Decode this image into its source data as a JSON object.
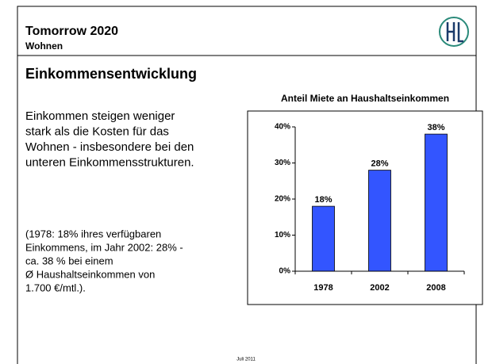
{
  "header": {
    "title": "Tomorrow 2020",
    "subtitle": "Wohnen"
  },
  "heading": "Einkommensentwicklung",
  "paragraph1": [
    "Einkommen steigen weniger",
    "stark als die Kosten für das",
    "Wohnen - insbesondere bei den",
    "unteren Einkommensstrukturen."
  ],
  "paragraph2": [
    "(1978: 18% ihres verfügbaren",
    "Einkommens, im Jahr 2002: 28% -",
    "ca. 38 % bei einem",
    "Ø Haushaltseinkommen von",
    "1.700 €/mtl.)."
  ],
  "footer": "Juli 2011",
  "chart_data": {
    "type": "bar",
    "title": "Anteil Miete an Haushaltseinkommen",
    "categories": [
      "1978",
      "2002",
      "2008"
    ],
    "values": [
      18,
      28,
      38
    ],
    "value_labels": [
      "18%",
      "28%",
      "38%"
    ],
    "color": "#3355ff",
    "ylim": [
      0,
      40
    ],
    "yticks": [
      {
        "value": 0,
        "label": "0%"
      },
      {
        "value": 10,
        "label": "10%"
      },
      {
        "value": 20,
        "label": "20%"
      },
      {
        "value": 30,
        "label": "30%"
      },
      {
        "value": 40,
        "label": "40%"
      }
    ]
  }
}
